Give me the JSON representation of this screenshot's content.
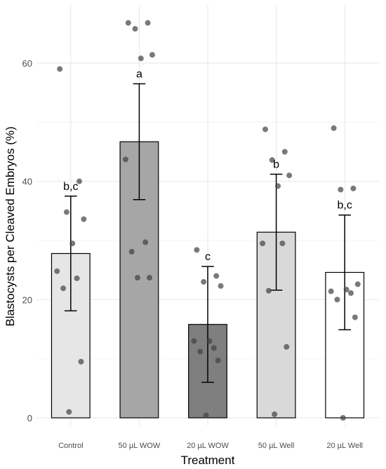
{
  "chart_data": {
    "type": "bar",
    "title": "",
    "xlabel": "Treatment",
    "ylabel": "Blastocysts per Cleaved Embryos (%)",
    "ylim": [
      0,
      68
    ],
    "yticks": [
      0,
      20,
      40,
      60
    ],
    "grid": true,
    "categories": [
      "Control",
      "50 µL WOW",
      "20 µL WOW",
      "50 µL Well",
      "20 µL Well"
    ],
    "values": [
      27.8,
      46.7,
      15.8,
      31.4,
      24.6
    ],
    "error": [
      9.7,
      9.8,
      9.8,
      9.8,
      9.7
    ],
    "significance": [
      "b,c",
      "a",
      "c",
      "b",
      "b,c"
    ],
    "fill_colors": [
      "#e6e6e6",
      "#a6a6a6",
      "#7f7f7f",
      "#d9d9d9",
      "#ffffff"
    ],
    "points": [
      [
        59.0,
        40.0,
        34.8,
        33.6,
        29.5,
        24.8,
        23.6,
        21.9,
        9.5,
        1.0
      ],
      [
        66.8,
        66.8,
        65.8,
        61.4,
        60.8,
        43.7,
        29.7,
        28.1,
        23.7,
        23.7
      ],
      [
        28.4,
        24.0,
        23.0,
        22.3,
        13.0,
        13.0,
        11.8,
        11.2,
        9.7,
        0.4
      ],
      [
        48.8,
        45.0,
        43.6,
        41.0,
        39.2,
        29.5,
        29.5,
        21.5,
        12.0,
        0.6
      ],
      [
        49.0,
        38.8,
        38.6,
        22.6,
        21.7,
        21.4,
        21.1,
        20.0,
        17.0,
        0.0
      ]
    ]
  }
}
